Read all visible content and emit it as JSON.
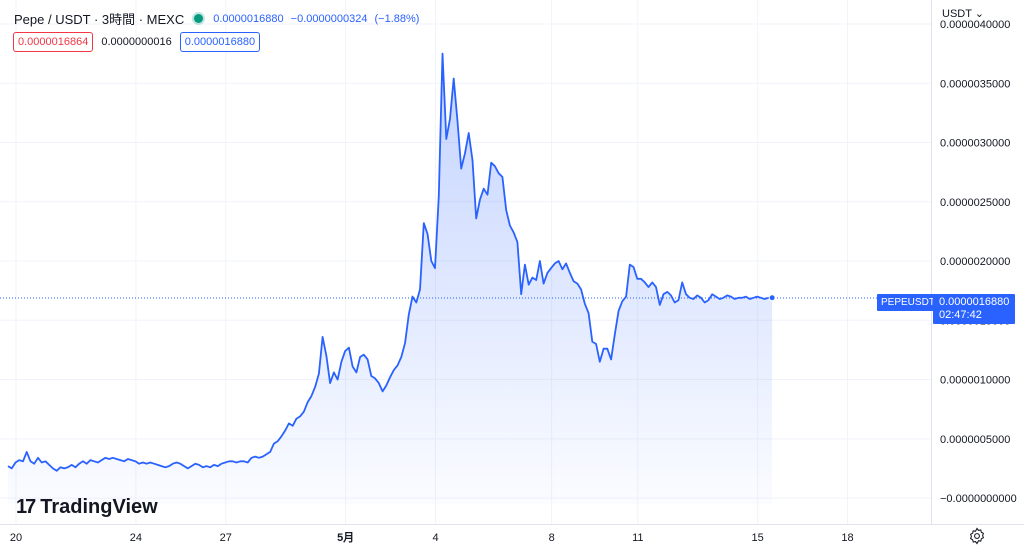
{
  "legend": {
    "title": "Pepe / USDT · 3時間 · MEXC",
    "last": "0.0000016880",
    "change": "−0.0000000324",
    "change_pct": "(−1.88%)",
    "status_color": "#089981"
  },
  "boxes": {
    "bid": "0.0000016864",
    "spread": "0.0000000016",
    "ask": "0.0000016880"
  },
  "currency_menu": "USDT ⌄",
  "price_tag": {
    "symbol": "PEPEUSDT",
    "price": "0.0000016880",
    "countdown": "02:47:42"
  },
  "logo_text": "TradingView",
  "logo_mark": "17",
  "settings_icon": "gear-icon",
  "colors": {
    "line": "#2962ff",
    "accent": "#2962ff",
    "down": "#f23645"
  },
  "chart_data": {
    "type": "area",
    "y_unit": "USDT",
    "y_tick_labels": [
      "0.0000040000",
      "0.0000035000",
      "0.0000030000",
      "0.0000025000",
      "0.0000020000",
      "0.0000015000",
      "0.0000010000",
      "0.0000005000",
      "−0.0000000000"
    ],
    "y_tick_values": [
      4e-06,
      3.5e-06,
      3e-06,
      2.5e-06,
      2e-06,
      1.5e-06,
      1e-06,
      5e-07,
      0
    ],
    "ylim": [
      -5e-08,
      4e-06
    ],
    "x_tick_labels": [
      "20",
      "24",
      "27",
      "5月",
      "4",
      "8",
      "11",
      "15",
      "18"
    ],
    "x_tick_index": [
      0,
      32,
      56,
      88,
      112,
      143,
      166,
      198,
      222
    ],
    "x_tick_bold": [
      false,
      false,
      false,
      true,
      false,
      false,
      false,
      false,
      false
    ],
    "last_value": 1.688e-06,
    "grid": true,
    "values": [
      2.7e-07,
      2.5e-07,
      3e-07,
      3.2e-07,
      3.1e-07,
      3.9e-07,
      3.1e-07,
      2.9e-07,
      3.4e-07,
      3e-07,
      3.1e-07,
      2.8e-07,
      2.5e-07,
      2.3e-07,
      2.6e-07,
      2.5e-07,
      2.6e-07,
      2.8e-07,
      2.6e-07,
      2.9e-07,
      3.1e-07,
      2.9e-07,
      3.2e-07,
      3.1e-07,
      3e-07,
      3.2e-07,
      3.4e-07,
      3.3e-07,
      3.4e-07,
      3.3e-07,
      3.2e-07,
      3.1e-07,
      3.3e-07,
      3.2e-07,
      3.1e-07,
      2.9e-07,
      3e-07,
      2.9e-07,
      3e-07,
      2.9e-07,
      2.8e-07,
      2.7e-07,
      2.6e-07,
      2.7e-07,
      2.9e-07,
      3e-07,
      2.9e-07,
      2.7e-07,
      2.5e-07,
      2.7e-07,
      2.9e-07,
      2.8e-07,
      2.6e-07,
      2.7e-07,
      2.6e-07,
      2.8e-07,
      2.7e-07,
      2.9e-07,
      3e-07,
      3.1e-07,
      3.1e-07,
      3e-07,
      3.1e-07,
      3.1e-07,
      3e-07,
      3.4e-07,
      3.5e-07,
      3.4e-07,
      3.5e-07,
      3.7e-07,
      3.9e-07,
      4.6e-07,
      4.8e-07,
      5.2e-07,
      5.7e-07,
      6.3e-07,
      6.1e-07,
      6.7e-07,
      6.9e-07,
      7.3e-07,
      8.1e-07,
      8.6e-07,
      9.4e-07,
      1.05e-06,
      1.36e-06,
      1.2e-06,
      9.7e-07,
      1.06e-06,
      1e-06,
      1.15e-06,
      1.24e-06,
      1.27e-06,
      1.11e-06,
      1.06e-06,
      1.19e-06,
      1.21e-06,
      1.17e-06,
      1.03e-06,
      1.01e-06,
      9.7e-07,
      9e-07,
      9.5e-07,
      1.02e-06,
      1.08e-06,
      1.12e-06,
      1.19e-06,
      1.31e-06,
      1.55e-06,
      1.7e-06,
      1.65e-06,
      1.76e-06,
      2.32e-06,
      2.23e-06,
      2e-06,
      1.94e-06,
      2.55e-06,
      3.75e-06,
      3.03e-06,
      3.2e-06,
      3.54e-06,
      3.18e-06,
      2.78e-06,
      2.91e-06,
      3.08e-06,
      2.85e-06,
      2.36e-06,
      2.52e-06,
      2.61e-06,
      2.56e-06,
      2.83e-06,
      2.8e-06,
      2.74e-06,
      2.71e-06,
      2.43e-06,
      2.3e-06,
      2.24e-06,
      2.16e-06,
      1.72e-06,
      1.97e-06,
      1.8e-06,
      1.86e-06,
      1.84e-06,
      2e-06,
      1.81e-06,
      1.9e-06,
      1.94e-06,
      1.98e-06,
      2e-06,
      1.93e-06,
      1.98e-06,
      1.9e-06,
      1.83e-06,
      1.81e-06,
      1.76e-06,
      1.64e-06,
      1.56e-06,
      1.32e-06,
      1.3e-06,
      1.15e-06,
      1.26e-06,
      1.26e-06,
      1.17e-06,
      1.38e-06,
      1.58e-06,
      1.66e-06,
      1.7e-06,
      1.97e-06,
      1.95e-06,
      1.85e-06,
      1.85e-06,
      1.82e-06,
      1.78e-06,
      1.82e-06,
      1.78e-06,
      1.63e-06,
      1.72e-06,
      1.74e-06,
      1.71e-06,
      1.65e-06,
      1.67e-06,
      1.82e-06,
      1.72e-06,
      1.69e-06,
      1.68e-06,
      1.71e-06,
      1.69e-06,
      1.65e-06,
      1.67e-06,
      1.72e-06,
      1.7e-06,
      1.68e-06,
      1.69e-06,
      1.71e-06,
      1.7e-06,
      1.68e-06,
      1.69e-06,
      1.69e-06,
      1.7e-06,
      1.68e-06,
      1.69e-06,
      1.7e-06,
      1.69e-06,
      1.68e-06,
      1.69e-06,
      1.69e-06
    ]
  }
}
